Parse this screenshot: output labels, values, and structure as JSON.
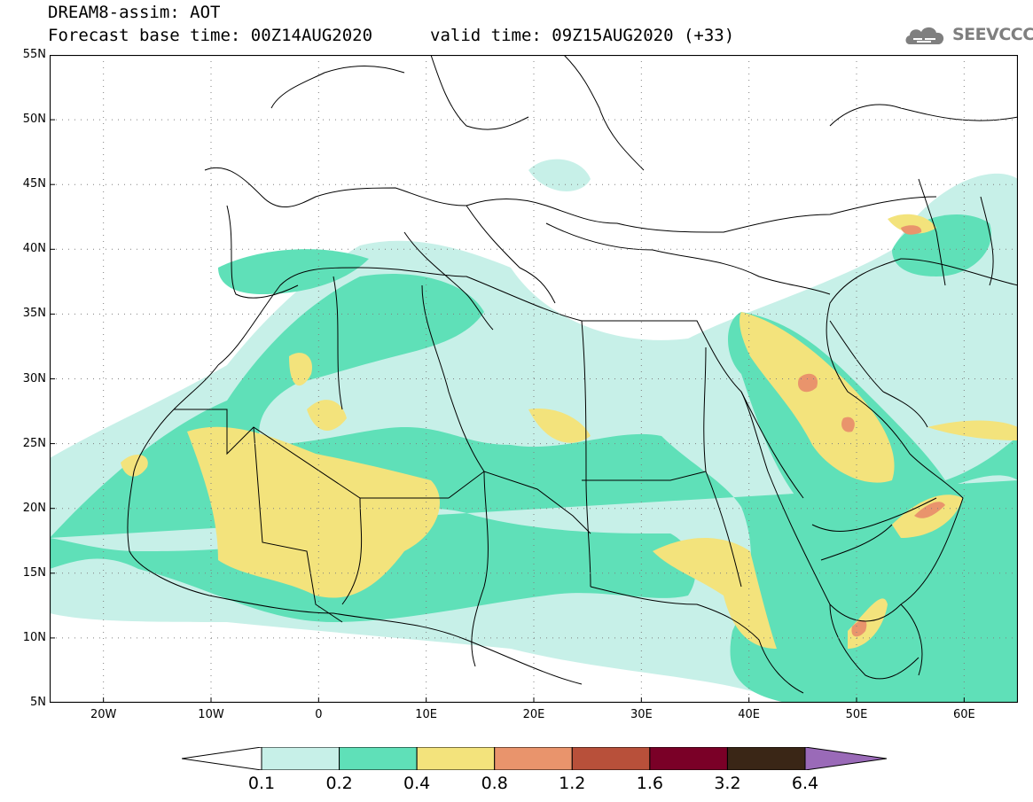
{
  "header": {
    "title": "DREAM8-assim: AOT",
    "base_time": "Forecast base time: 00Z14AUG2020",
    "valid_time": "valid time: 09Z15AUG2020 (+33)",
    "logo": "SEEVCCC",
    "logo_icon": "cloud-icon"
  },
  "map": {
    "region": {
      "lon_min": -25,
      "lon_max": 65,
      "lat_min": 5,
      "lat_max": 55
    },
    "lat_ticks": [
      {
        "value": 55,
        "label": "55N"
      },
      {
        "value": 50,
        "label": "50N"
      },
      {
        "value": 45,
        "label": "45N"
      },
      {
        "value": 40,
        "label": "40N"
      },
      {
        "value": 35,
        "label": "35N"
      },
      {
        "value": 30,
        "label": "30N"
      },
      {
        "value": 25,
        "label": "25N"
      },
      {
        "value": 20,
        "label": "20N"
      },
      {
        "value": 15,
        "label": "15N"
      },
      {
        "value": 10,
        "label": "10N"
      },
      {
        "value": 5,
        "label": "5N"
      }
    ],
    "lon_ticks": [
      {
        "value": -20,
        "label": "20W"
      },
      {
        "value": -10,
        "label": "10W"
      },
      {
        "value": 0,
        "label": "0"
      },
      {
        "value": 10,
        "label": "10E"
      },
      {
        "value": 20,
        "label": "20E"
      },
      {
        "value": 30,
        "label": "30E"
      },
      {
        "value": 40,
        "label": "40E"
      },
      {
        "value": 50,
        "label": "50E"
      },
      {
        "value": 60,
        "label": "60E"
      }
    ],
    "gridlines": true
  },
  "colorbar": {
    "colors": [
      "#c7f0e8",
      "#5fe0b8",
      "#f3e37c",
      "#e9946c",
      "#b8503a",
      "#7a0027",
      "#3a2616",
      "#9a6ab8"
    ],
    "labels": [
      "0.1",
      "0.2",
      "0.4",
      "0.8",
      "1.2",
      "1.6",
      "3.2",
      "6.4"
    ]
  }
}
